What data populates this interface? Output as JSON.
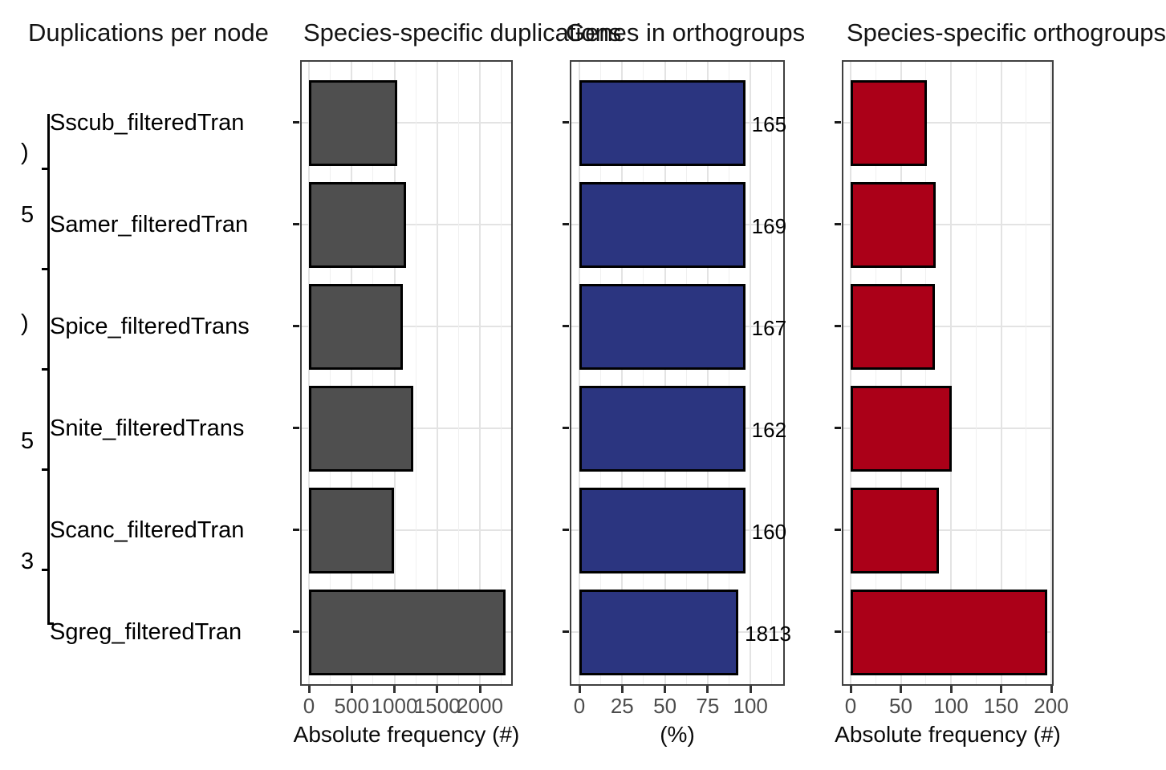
{
  "chart_data": [
    {
      "type": "tree",
      "title": "Duplications per node",
      "species": [
        {
          "label": "Sscub_filteredTran"
        },
        {
          "label": "Samer_filteredTran"
        },
        {
          "label": "Spice_filteredTrans"
        },
        {
          "label": "Snite_filteredTrans"
        },
        {
          "label": "Scanc_filteredTran"
        },
        {
          "label": "Sgreg_filteredTran"
        }
      ],
      "node_label_fragments": [
        {
          "text": ")",
          "y": 190
        },
        {
          "text": "5",
          "y": 268
        },
        {
          "text": ")",
          "y": 403
        },
        {
          "text": "5",
          "y": 550
        },
        {
          "text": "3",
          "y": 700
        }
      ],
      "note": "tip and node labels are clipped at the plot edge"
    },
    {
      "type": "bar",
      "title": "Species-specific duplications",
      "xlabel": "Absolute frequency (#)",
      "categories": [
        "Sscub_filteredTran",
        "Samer_filteredTran",
        "Spice_filteredTrans",
        "Snite_filteredTrans",
        "Scanc_filteredTran",
        "Sgreg_filteredTran"
      ],
      "values": [
        1010,
        1120,
        1080,
        1200,
        980,
        2280
      ],
      "x_ticks": [
        0,
        500,
        1000,
        1500,
        2000
      ],
      "x_minor_ticks": [
        250,
        750,
        1250,
        1750,
        2250
      ],
      "xlim": [
        0,
        2385
      ],
      "bar_color": "#4F4F4F",
      "bar_labels": null,
      "grid": true,
      "legend": "none"
    },
    {
      "type": "bar",
      "title": "Genes in orthogroups",
      "xlabel": "(%)",
      "categories": [
        "Sscub_filteredTran",
        "Samer_filteredTran",
        "Spice_filteredTrans",
        "Snite_filteredTrans",
        "Scanc_filteredTran",
        "Sgreg_filteredTran"
      ],
      "values": [
        96,
        96,
        96,
        96,
        96,
        92
      ],
      "x_ticks": [
        0,
        25,
        50,
        75,
        100
      ],
      "x_minor_ticks": [
        12.5,
        37.5,
        62.5,
        87.5,
        112.5
      ],
      "xlim": [
        0,
        120
      ],
      "bar_color": "#2B3580",
      "bar_labels": [
        "165",
        "169",
        "167",
        "162",
        "160",
        "1813"
      ],
      "grid": true,
      "legend": "none"
    },
    {
      "type": "bar",
      "title": "Species-specific orthogroups",
      "xlabel": "Absolute frequency (#)",
      "categories": [
        "Sscub_filteredTran",
        "Samer_filteredTran",
        "Spice_filteredTrans",
        "Snite_filteredTrans",
        "Scanc_filteredTran",
        "Sgreg_filteredTran"
      ],
      "values": [
        74,
        83,
        82,
        99,
        86,
        194
      ],
      "x_ticks": [
        0,
        50,
        100,
        150,
        200
      ],
      "x_minor_ticks": [
        25,
        75,
        125,
        175
      ],
      "xlim": [
        0,
        203
      ],
      "bar_color": "#AB0018",
      "bar_labels": null,
      "grid": true,
      "legend": "none"
    }
  ],
  "colors": {
    "duplications_bar": "#4F4F4F",
    "genes_in_orthogroups_bar": "#2B3580",
    "species_specific_orthogroups_bar": "#AB0018",
    "grid_major": "#e3e3e3",
    "grid_minor": "#f0f0f0",
    "panel_border": "#3f3f3f",
    "tick_text": "#4d4d4d"
  }
}
